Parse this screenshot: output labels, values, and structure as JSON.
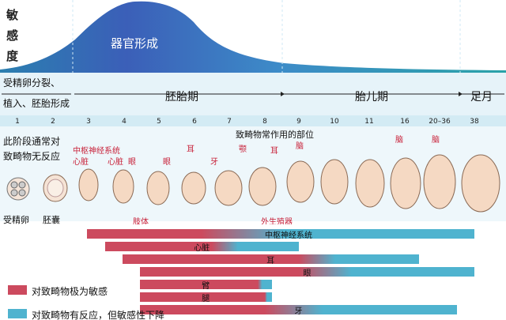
{
  "y_axis": [
    "敏",
    "感",
    "度"
  ],
  "peak_label": "器官形成",
  "stages": {
    "s1_line1": "受精卵分裂、",
    "s1_line2": "植入、胚胎形成",
    "embryo": "胚胎期",
    "fetal": "胎儿期",
    "term": "足月"
  },
  "weeks": [
    "1",
    "2",
    "3",
    "4",
    "5",
    "6",
    "7",
    "8",
    "9",
    "10",
    "11",
    "16",
    "20–36",
    "38"
  ],
  "left_note": [
    "此阶段通常对",
    "致畸物无反应"
  ],
  "header_note": "致畸物常作用的部位",
  "cell_labels": {
    "zygote": "受精卵",
    "blastocyst": "胚囊"
  },
  "organ_labels": {
    "cns": "中枢神经系统",
    "heart": "心脏",
    "eye": "眼",
    "eye2": "眼",
    "ear": "耳",
    "teeth": "牙",
    "palate": "颚",
    "ear2": "耳",
    "brain1": "脑",
    "brain2": "脑",
    "brain3": "脑",
    "limbs": "肢体",
    "genitals": "外生殖器"
  },
  "bars": [
    {
      "label": "中枢神经系统",
      "red_start": 3,
      "red_end": 6.2,
      "blue_end": 16.6
    },
    {
      "label": "心脏",
      "red_start": 3.5,
      "red_end": 6.5,
      "blue_end": 9
    },
    {
      "label": "耳",
      "red_start": 4,
      "red_end": 9,
      "blue_end": 12.4
    },
    {
      "label": "眼",
      "red_start": 4.5,
      "red_end": 9,
      "blue_end": 16.6
    },
    {
      "label": "臂",
      "red_start": 4.5,
      "red_end": 7.8,
      "blue_end": 8.2
    },
    {
      "label": "腿",
      "red_start": 4.5,
      "red_end": 8,
      "blue_end": 8.2
    },
    {
      "label": "牙",
      "red_start": 4.5,
      "red_end": 8,
      "blue_end": 13.5
    }
  ],
  "legend": [
    {
      "text": "对致畸物极为敏感",
      "color": "#cc4a5e"
    },
    {
      "text": "对致畸物有反应，但敏感性下降",
      "color": "#4fb3cf"
    }
  ],
  "colors": {
    "red": "#cc4a5e",
    "blue": "#4fb3cf",
    "curve": "#2a7bbd"
  }
}
